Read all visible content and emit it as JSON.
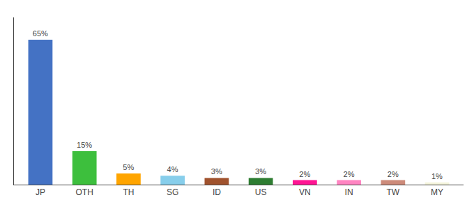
{
  "chart_data": {
    "type": "bar",
    "categories": [
      "JP",
      "OTH",
      "TH",
      "SG",
      "ID",
      "US",
      "VN",
      "IN",
      "TW",
      "MY"
    ],
    "values": [
      65,
      15,
      5,
      4,
      3,
      3,
      2,
      2,
      2,
      1
    ],
    "value_labels": [
      "65%",
      "15%",
      "5%",
      "4%",
      "3%",
      "3%",
      "2%",
      "2%",
      "2%",
      "1%"
    ],
    "colors": [
      "#4472C4",
      "#3DBF3D",
      "#FFA500",
      "#87CEEB",
      "#A0522D",
      "#2E7D32",
      "#FF1493",
      "#FF85C2",
      "#CD8B7A",
      "#F5F5DC"
    ],
    "ylim": [
      0,
      75
    ],
    "grid": false,
    "data_labels": true,
    "tick_labels": "x"
  }
}
